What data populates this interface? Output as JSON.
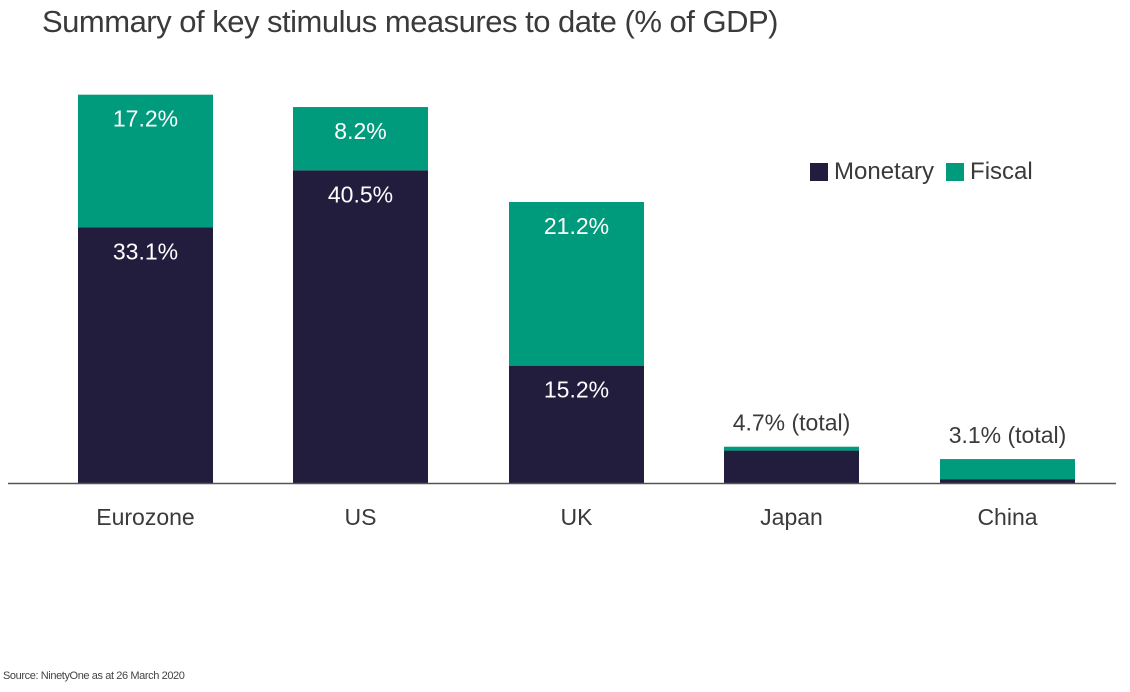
{
  "chart_data": {
    "type": "bar",
    "stacked": true,
    "title": "Summary of key stimulus measures to date (% of GDP)",
    "xlabel": "",
    "ylabel": "",
    "ylim": [
      0,
      52
    ],
    "grid": false,
    "legend_position": "top-right",
    "categories": [
      "Eurozone",
      "US",
      "UK",
      "Japan",
      "China"
    ],
    "series": [
      {
        "name": "Monetary",
        "color": "#231d3d",
        "values": [
          33.1,
          40.5,
          15.2,
          4.2,
          0.5
        ]
      },
      {
        "name": "Fiscal",
        "color": "#009b7d",
        "values": [
          17.2,
          8.2,
          21.2,
          0.5,
          2.6
        ]
      }
    ],
    "data_labels": [
      {
        "category": "Eurozone",
        "monetary": "33.1%",
        "fiscal": "17.2%"
      },
      {
        "category": "US",
        "monetary": "40.5%",
        "fiscal": "8.2%"
      },
      {
        "category": "UK",
        "monetary": "15.2%",
        "fiscal": "21.2%"
      },
      {
        "category": "Japan",
        "total": "4.7% (total)"
      },
      {
        "category": "China",
        "total": "3.1% (total)"
      }
    ]
  },
  "source": "Source: NinetyOne as at 26 March 2020"
}
